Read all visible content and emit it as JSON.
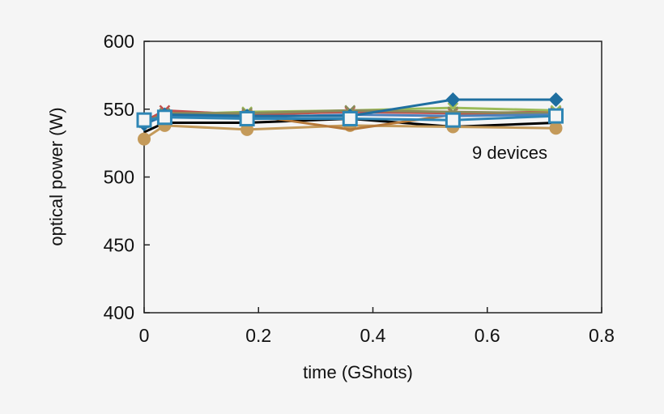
{
  "chart_data": {
    "type": "line",
    "title": "",
    "xlabel": "time (GShots)",
    "ylabel": "optical power (W)",
    "xlim": [
      0,
      0.8
    ],
    "ylim": [
      400,
      600
    ],
    "xticks": [
      0,
      0.2,
      0.4,
      0.6,
      0.8
    ],
    "xtick_labels": [
      "0",
      "0.2",
      "0.4",
      "0.6",
      "0.8"
    ],
    "yticks": [
      400,
      450,
      500,
      550,
      600
    ],
    "ytick_labels": [
      "400",
      "450",
      "500",
      "550",
      "600"
    ],
    "grid": false,
    "legend": "none",
    "annotation": "9 devices",
    "x": [
      0,
      0.036,
      0.18,
      0.36,
      0.54,
      0.72
    ],
    "series": [
      {
        "color": "#000000",
        "marker": "none",
        "values": [
          533,
          540,
          540,
          543,
          537,
          540
        ]
      },
      {
        "color": "#c49a5a",
        "marker": "circle",
        "values": [
          528,
          538,
          535,
          538,
          537,
          536
        ]
      },
      {
        "color": "#b5793a",
        "marker": "none",
        "values": [
          540,
          547,
          546,
          535,
          546,
          547
        ]
      },
      {
        "color": "#c0504d",
        "marker": "x",
        "values": [
          541,
          549,
          546,
          548,
          547,
          548
        ]
      },
      {
        "color": "#9bbb59",
        "marker": "x",
        "values": [
          540,
          546,
          548,
          549,
          551,
          549
        ]
      },
      {
        "color": "#8a8a5a",
        "marker": "x",
        "values": [
          540,
          547,
          547,
          549,
          548,
          547
        ]
      },
      {
        "color": "#4f81bd",
        "marker": "none",
        "values": [
          539,
          545,
          544,
          546,
          545,
          546
        ]
      },
      {
        "color": "#1f6fa0",
        "marker": "diamond",
        "values": [
          539,
          546,
          545,
          545,
          557,
          557
        ]
      },
      {
        "color": "#2e86b5",
        "marker": "square",
        "values": [
          542,
          544,
          543,
          543,
          542,
          545
        ]
      }
    ]
  }
}
